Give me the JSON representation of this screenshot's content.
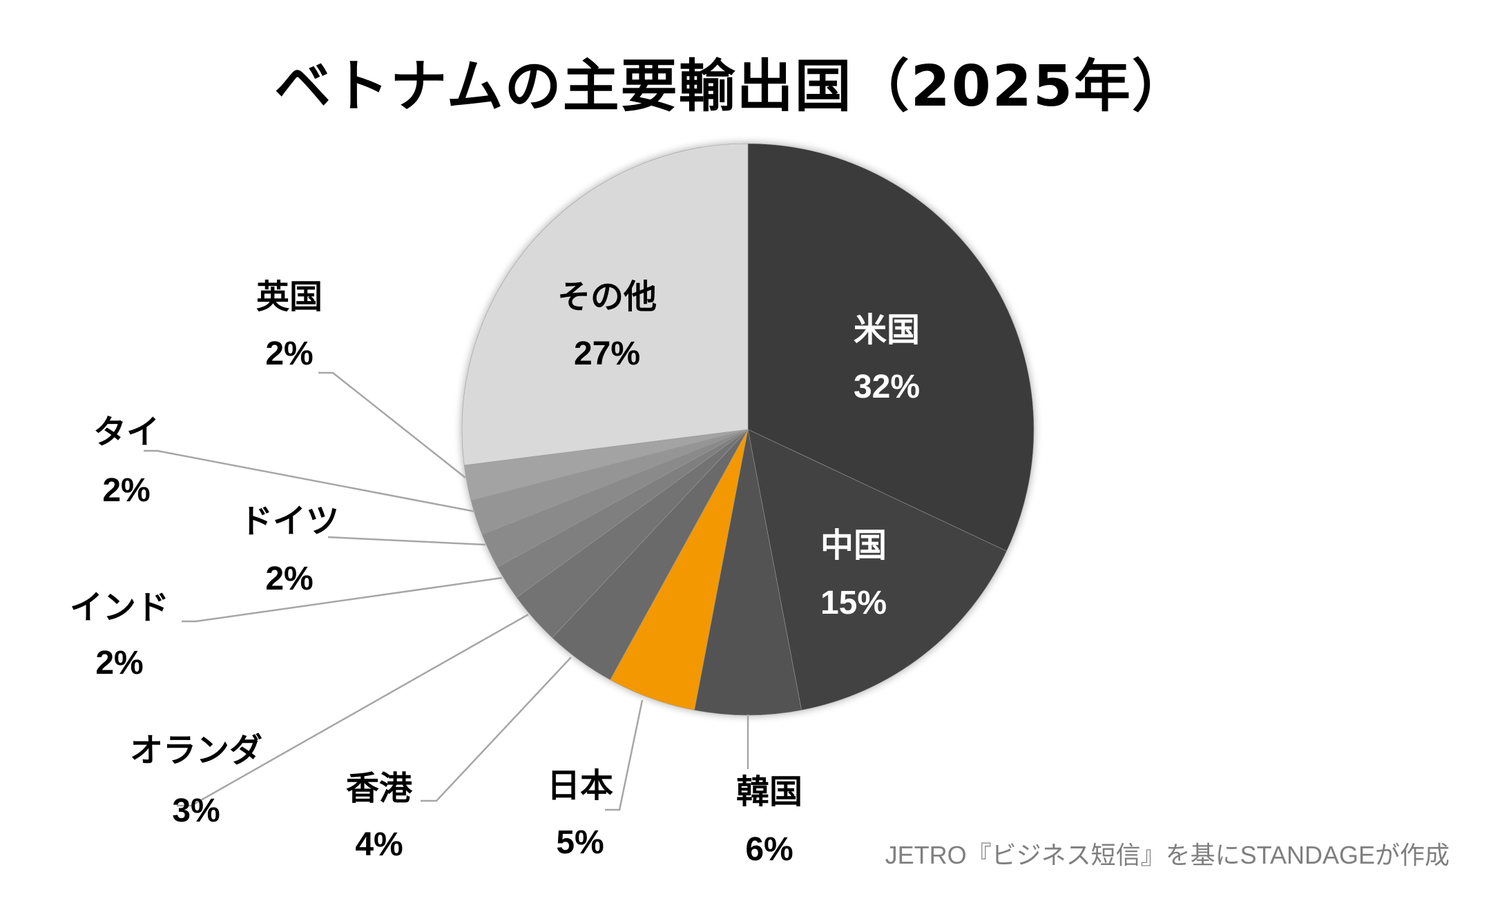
{
  "chart_data": {
    "type": "pie",
    "title": "ベトナムの主要輸出国（2025年）",
    "unit": "%",
    "start_angle": "12 o'clock",
    "direction": "clockwise",
    "slices": [
      {
        "name": "米国",
        "value": 32,
        "label": "32%",
        "color": "#3a3a3a",
        "text_color": "#ffffff",
        "label_placement": "inside"
      },
      {
        "name": "中国",
        "value": 15,
        "label": "15%",
        "color": "#434343",
        "text_color": "#ffffff",
        "label_placement": "inside"
      },
      {
        "name": "韓国",
        "value": 6,
        "label": "6%",
        "color": "#525252",
        "text_color": "#000000",
        "label_placement": "outside"
      },
      {
        "name": "日本",
        "value": 5,
        "label": "5%",
        "color": "#f39800",
        "text_color": "#000000",
        "label_placement": "outside"
      },
      {
        "name": "香港",
        "value": 4,
        "label": "4%",
        "color": "#6b6b6b",
        "text_color": "#000000",
        "label_placement": "outside"
      },
      {
        "name": "オランダ",
        "value": 3,
        "label": "3%",
        "color": "#737373",
        "text_color": "#000000",
        "label_placement": "outside"
      },
      {
        "name": "インド",
        "value": 2,
        "label": "2%",
        "color": "#7f7f7f",
        "text_color": "#000000",
        "label_placement": "outside"
      },
      {
        "name": "ドイツ",
        "value": 2,
        "label": "2%",
        "color": "#8a8a8a",
        "text_color": "#000000",
        "label_placement": "outside"
      },
      {
        "name": "タイ",
        "value": 2,
        "label": "2%",
        "color": "#959595",
        "text_color": "#000000",
        "label_placement": "outside"
      },
      {
        "name": "英国",
        "value": 2,
        "label": "2%",
        "color": "#a3a3a3",
        "text_color": "#000000",
        "label_placement": "outside"
      },
      {
        "name": "その他",
        "value": 27,
        "label": "27%",
        "color": "#d9d9d9",
        "text_color": "#000000",
        "label_placement": "inside"
      }
    ],
    "highlight_color": "#f39800",
    "leader_line_color": "#a6a6a6"
  },
  "source": "JETRO『ビジネス短信』を基にSTANDAGEが作成"
}
